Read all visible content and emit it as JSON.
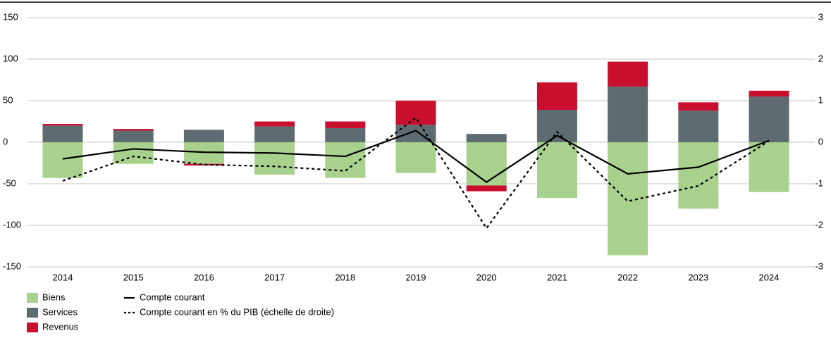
{
  "chart_data": {
    "type": "bar-line",
    "categories": [
      "2014",
      "2015",
      "2016",
      "2017",
      "2018",
      "2019",
      "2020",
      "2021",
      "2022",
      "2023",
      "2024"
    ],
    "series": [
      {
        "name": "Biens",
        "color": "#a9d18e",
        "kind": "bar",
        "values": [
          -43,
          -26,
          -26,
          -39,
          -43,
          -37,
          -52,
          -67,
          -136,
          -80,
          -60
        ]
      },
      {
        "name": "Services",
        "color": "#5e6c71",
        "kind": "bar",
        "values": [
          20,
          14,
          15,
          19,
          17,
          21,
          10,
          39,
          67,
          38,
          55
        ]
      },
      {
        "name": "Revenus",
        "color": "#c8102e",
        "kind": "bar",
        "values": [
          2,
          2,
          -2,
          6,
          8,
          29,
          -7,
          33,
          30,
          10,
          7
        ]
      },
      {
        "name": "Compte courant",
        "color": "#000000",
        "kind": "line",
        "linestyle": "solid",
        "values": [
          -20,
          -8,
          -12,
          -13,
          -17,
          14,
          -48,
          8,
          -38,
          -30,
          2
        ]
      },
      {
        "name": "Compte courant en % du PIB (échelle de droite)",
        "color": "#000000",
        "kind": "line",
        "linestyle": "dotted",
        "axis": "y2",
        "values": [
          -0.93,
          -0.34,
          -0.54,
          -0.58,
          -0.69,
          0.59,
          -2.07,
          0.25,
          -1.42,
          -1.05,
          0.03
        ]
      }
    ],
    "ylim": [
      -150,
      150
    ],
    "yticks": [
      -150,
      -100,
      -50,
      0,
      50,
      100,
      150
    ],
    "y2lim": [
      -3,
      3
    ],
    "y2ticks": [
      -3,
      -2,
      -1,
      0,
      1,
      2,
      3
    ],
    "grid": true
  }
}
